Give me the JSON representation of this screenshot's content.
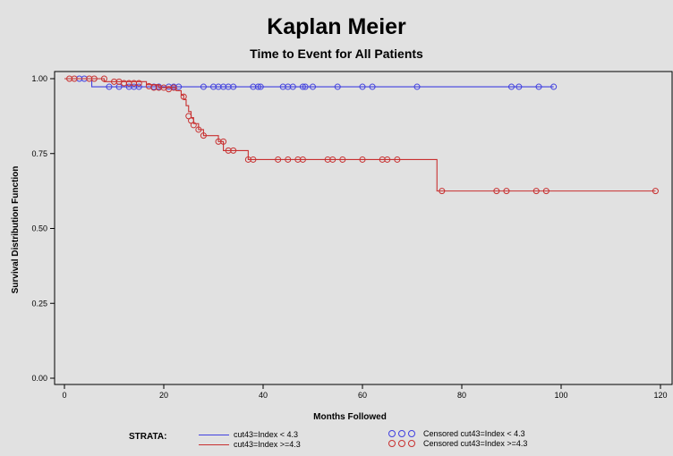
{
  "chart_data": {
    "type": "line",
    "title": "Kaplan Meier",
    "subtitle": "Time to Event for All Patients",
    "xlabel": "Months Followed",
    "ylabel": "Survival Distribution Function",
    "xlim": [
      0,
      120
    ],
    "ylim": [
      0,
      1
    ],
    "xticks": [
      0,
      20,
      40,
      60,
      80,
      100,
      120
    ],
    "xtick_labels": [
      "0",
      "20",
      "40",
      "60",
      "80",
      "100",
      "120"
    ],
    "yticks": [
      0,
      0.25,
      0.5,
      0.75,
      1.0
    ],
    "ytick_labels": [
      "0.00",
      "0.25",
      "0.50",
      "0.75",
      "1.00"
    ],
    "grid": false,
    "legend_title": "STRATA:",
    "legend_position": "bottom",
    "series": [
      {
        "name": "cut43=Index < 4.3",
        "color": "#4040e0",
        "censor_name": "Censored cut43=Index < 4.3",
        "step_x": [
          0,
          5.5,
          98.5
        ],
        "step_y": [
          1.0,
          0.973,
          0.973
        ],
        "censored": [
          [
            3,
            1.0
          ],
          [
            4,
            1.0
          ],
          [
            9,
            0.973
          ],
          [
            11,
            0.973
          ],
          [
            13,
            0.973
          ],
          [
            14,
            0.973
          ],
          [
            15,
            0.973
          ],
          [
            18,
            0.973
          ],
          [
            19,
            0.973
          ],
          [
            21,
            0.973
          ],
          [
            22,
            0.973
          ],
          [
            23,
            0.973
          ],
          [
            28,
            0.973
          ],
          [
            30,
            0.973
          ],
          [
            31,
            0.973
          ],
          [
            32,
            0.973
          ],
          [
            33,
            0.973
          ],
          [
            34,
            0.973
          ],
          [
            38,
            0.973
          ],
          [
            39,
            0.973
          ],
          [
            39.5,
            0.973
          ],
          [
            44,
            0.973
          ],
          [
            45,
            0.973
          ],
          [
            46,
            0.973
          ],
          [
            48,
            0.973
          ],
          [
            48.5,
            0.973
          ],
          [
            50,
            0.973
          ],
          [
            55,
            0.973
          ],
          [
            60,
            0.973
          ],
          [
            62,
            0.973
          ],
          [
            71,
            0.973
          ],
          [
            90,
            0.973
          ],
          [
            91.5,
            0.973
          ],
          [
            95.5,
            0.973
          ],
          [
            98.5,
            0.973
          ]
        ]
      },
      {
        "name": "cut43=Index >=4.3",
        "color": "#c83030",
        "censor_name": "Censored cut43=Index >=4.3",
        "step_x": [
          0,
          8,
          16.5,
          19,
          22.5,
          23.5,
          24,
          24.5,
          25,
          25.5,
          26,
          27,
          28,
          31,
          32,
          37,
          75,
          119
        ],
        "step_y": [
          1.0,
          0.99,
          0.98,
          0.97,
          0.96,
          0.945,
          0.93,
          0.91,
          0.89,
          0.87,
          0.85,
          0.83,
          0.81,
          0.79,
          0.76,
          0.73,
          0.625,
          0.625
        ],
        "censored": [
          [
            1,
            1.0
          ],
          [
            2,
            1.0
          ],
          [
            5,
            1.0
          ],
          [
            6,
            1.0
          ],
          [
            8,
            1.0
          ],
          [
            10,
            0.99
          ],
          [
            11,
            0.99
          ],
          [
            12,
            0.985
          ],
          [
            13,
            0.985
          ],
          [
            14,
            0.985
          ],
          [
            15,
            0.985
          ],
          [
            17,
            0.975
          ],
          [
            18,
            0.97
          ],
          [
            19,
            0.97
          ],
          [
            20,
            0.97
          ],
          [
            21,
            0.965
          ],
          [
            22,
            0.97
          ],
          [
            24,
            0.94
          ],
          [
            25,
            0.875
          ],
          [
            25.5,
            0.86
          ],
          [
            26,
            0.845
          ],
          [
            27,
            0.83
          ],
          [
            28,
            0.81
          ],
          [
            31,
            0.79
          ],
          [
            32,
            0.79
          ],
          [
            33,
            0.76
          ],
          [
            34,
            0.76
          ],
          [
            37,
            0.73
          ],
          [
            38,
            0.73
          ],
          [
            43,
            0.73
          ],
          [
            45,
            0.73
          ],
          [
            47,
            0.73
          ],
          [
            48,
            0.73
          ],
          [
            53,
            0.73
          ],
          [
            54,
            0.73
          ],
          [
            56,
            0.73
          ],
          [
            60,
            0.73
          ],
          [
            64,
            0.73
          ],
          [
            65,
            0.73
          ],
          [
            67,
            0.73
          ],
          [
            76,
            0.625
          ],
          [
            87,
            0.625
          ],
          [
            89,
            0.625
          ],
          [
            95,
            0.625
          ],
          [
            97,
            0.625
          ],
          [
            119,
            0.625
          ]
        ]
      }
    ]
  }
}
